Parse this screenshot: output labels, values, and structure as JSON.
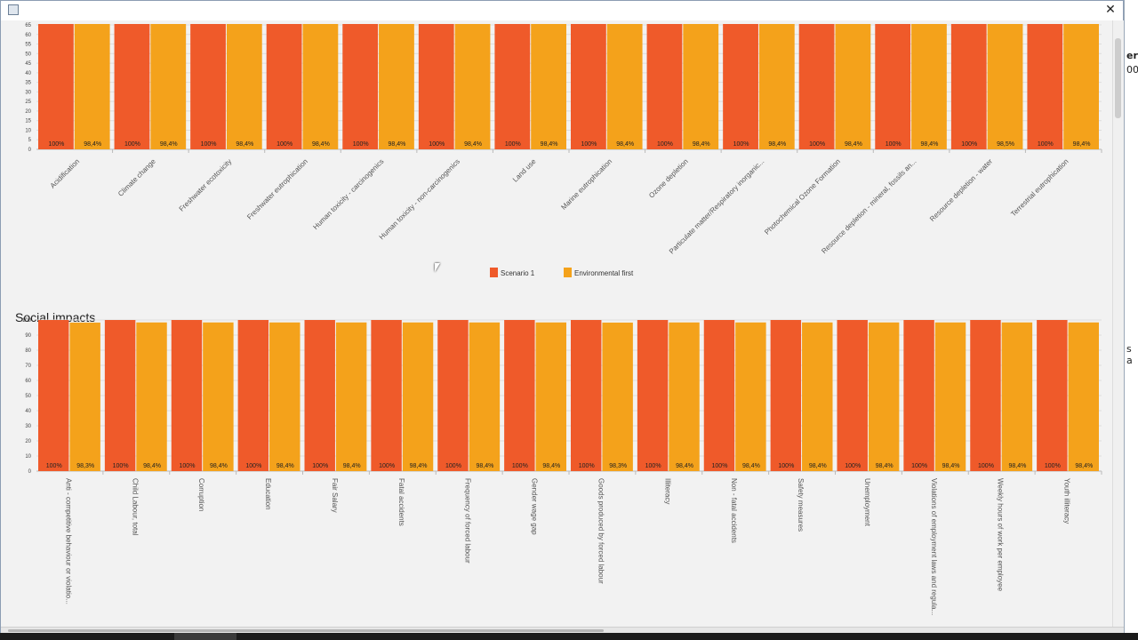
{
  "window": {
    "title": "",
    "close_label": "✕"
  },
  "colors": {
    "scenario1": "#ef5a2a",
    "env_first": "#f4a21b",
    "grid": "#dddddd",
    "label": "#555555"
  },
  "section_social_title": "Social impacts",
  "legend": [
    {
      "name": "Scenario 1",
      "color": "#ef5a2a"
    },
    {
      "name": "Environmental first",
      "color": "#f4a21b"
    }
  ],
  "background_fragments": [
    "er",
    "00",
    "s a"
  ],
  "chart_data": [
    {
      "type": "bar",
      "title": "",
      "categories": [
        "Acidification",
        "Climate change",
        "Freshwater ecotoxicity",
        "Freshwater eutrophication",
        "Human toxicity - carcinogenics",
        "Human toxicity - non-carcinogenics",
        "Land use",
        "Marine eutrophication",
        "Ozone depletion",
        "Particulate matter/Respiratory inorganic...",
        "Photochemical Ozone Formation",
        "Resource depletion - mineral, fossils an...",
        "Resource depletion - water",
        "Terrestrial eutrophication"
      ],
      "yticks": [
        "0",
        "5",
        "10",
        "15",
        "20",
        "25",
        "30",
        "35",
        "40",
        "45",
        "50",
        "55",
        "60",
        "65"
      ],
      "series": [
        {
          "name": "Scenario 1",
          "values": [
            100,
            100,
            100,
            100,
            100,
            100,
            100,
            100,
            100,
            100,
            100,
            100,
            100,
            100
          ],
          "labels": [
            "100%",
            "100%",
            "100%",
            "100%",
            "100%",
            "100%",
            "100%",
            "100%",
            "100%",
            "100%",
            "100%",
            "100%",
            "100%",
            "100%"
          ]
        },
        {
          "name": "Environmental first",
          "values": [
            98.4,
            98.4,
            98.4,
            98.4,
            98.4,
            98.4,
            98.4,
            98.4,
            98.4,
            98.4,
            98.4,
            98.4,
            98.5,
            98.4
          ],
          "labels": [
            "98,4%",
            "98,4%",
            "98,4%",
            "98,4%",
            "98,4%",
            "98,4%",
            "98,4%",
            "98,4%",
            "98,4%",
            "98,4%",
            "98,4%",
            "98,4%",
            "98,5%",
            "98,4%"
          ]
        }
      ]
    },
    {
      "type": "bar",
      "title": "Social impacts",
      "categories": [
        "Anti - competitive behaviour or violatio...",
        "Child Labour, total",
        "Corruption",
        "Education",
        "Fair Salary",
        "Fatal accidents",
        "Frequency of forced labour",
        "Gender wage gap",
        "Goods produced by forced labour",
        "Illiteracy",
        "Non - fatal accidents",
        "Safety measures",
        "Unemployment",
        "Violations of employment laws and regula...",
        "Weekly hours of work per employee",
        "Youth illiteracy"
      ],
      "yticks": [
        "0",
        "10",
        "20",
        "30",
        "40",
        "50",
        "60",
        "70",
        "80",
        "90",
        "100"
      ],
      "ylim": [
        0,
        100
      ],
      "series": [
        {
          "name": "Scenario 1",
          "values": [
            100,
            100,
            100,
            100,
            100,
            100,
            100,
            100,
            100,
            100,
            100,
            100,
            100,
            100,
            100,
            100
          ],
          "labels": [
            "100%",
            "100%",
            "100%",
            "100%",
            "100%",
            "100%",
            "100%",
            "100%",
            "100%",
            "100%",
            "100%",
            "100%",
            "100%",
            "100%",
            "100%",
            "100%"
          ]
        },
        {
          "name": "Environmental first",
          "values": [
            98.3,
            98.4,
            98.4,
            98.4,
            98.4,
            98.4,
            98.4,
            98.4,
            98.3,
            98.4,
            98.4,
            98.4,
            98.4,
            98.4,
            98.4,
            98.4
          ],
          "labels": [
            "98,3%",
            "98,4%",
            "98,4%",
            "98,4%",
            "98,4%",
            "98,4%",
            "98,4%",
            "98,4%",
            "98,3%",
            "98,4%",
            "98,4%",
            "98,4%",
            "98,4%",
            "98,4%",
            "98,4%",
            "98,4%"
          ]
        }
      ]
    }
  ]
}
